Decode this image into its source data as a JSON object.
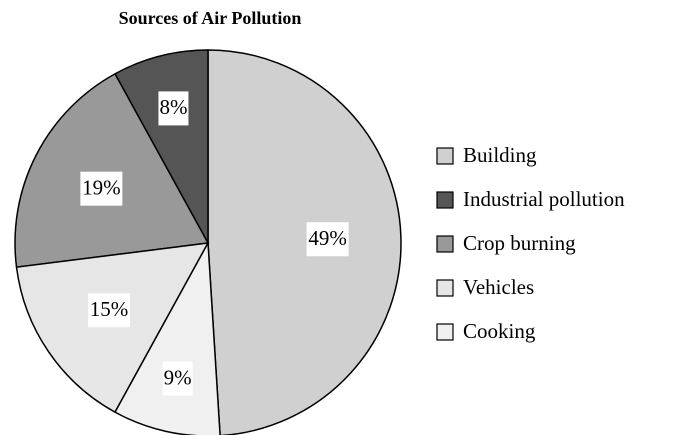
{
  "chart_data": {
    "type": "pie",
    "title": "Sources of Air Pollution",
    "categories": [
      "Building",
      "Industrial pollution",
      "Crop burning",
      "Vehicles",
      "Cooking"
    ],
    "values": [
      49,
      8,
      19,
      15,
      9
    ],
    "value_labels": [
      "49%",
      "8%",
      "19%",
      "15%",
      "9%"
    ],
    "colors": [
      "#d0d0d0",
      "#555555",
      "#999999",
      "#e6e6e6",
      "#f0f0f0"
    ],
    "legend": "right"
  }
}
